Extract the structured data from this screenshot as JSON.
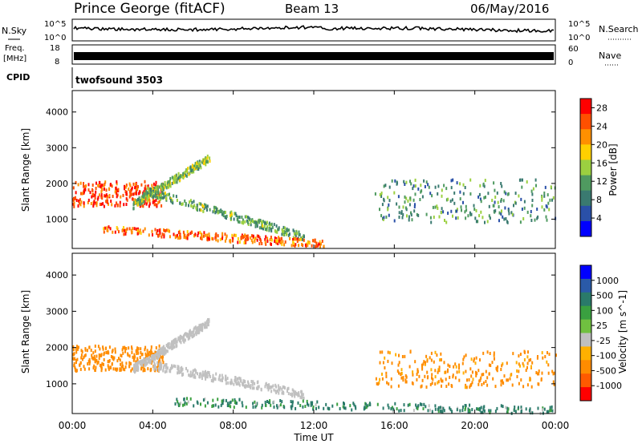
{
  "header": {
    "station": "Prince George (fitACF)",
    "beam": "Beam 13",
    "date": "06/May/2016"
  },
  "panels": {
    "nsky_label": "N.Sky",
    "nsearch_label": "N.Search",
    "noise_scale_top": "10^5",
    "noise_scale_bottom": "10^0",
    "freq_label_line1": "Freq.",
    "freq_label_line2": "[MHz]",
    "freq_ticks": [
      "18",
      "8"
    ],
    "nave_label": "Nave",
    "nave_ticks": [
      "60",
      "0"
    ],
    "cpid_label": "CPID",
    "cpid_value": "twofsound 3503"
  },
  "colors": {
    "missing": "#ffffff",
    "ground_scatter": "#c0c0c0",
    "power_scale": [
      "#0000ff",
      "#2a50a8",
      "#3a7a70",
      "#4f9a60",
      "#9bd040",
      "#ffd000",
      "#ff9000",
      "#ff5000",
      "#ff0000"
    ],
    "velocity_scale": [
      "#ff0000",
      "#ff5a00",
      "#ff8c00",
      "#ffb000",
      "#c0c0c0",
      "#70c040",
      "#3aa040",
      "#2a7a6a",
      "#2a5aa8",
      "#0000ff"
    ]
  },
  "chart_data": [
    {
      "type": "heatmap",
      "name": "power",
      "xlabel": "Time UT",
      "ylabel": "Slant Range [km]",
      "x_ticks": [
        "00:00",
        "04:00",
        "08:00",
        "12:00",
        "16:00",
        "20:00",
        "00:00"
      ],
      "x_range_hours": [
        0,
        24
      ],
      "y_ticks": [
        1000,
        2000,
        3000,
        4000
      ],
      "ylim": [
        180,
        4600
      ],
      "colorbar": {
        "label": "Power [dB]",
        "ticks": [
          4,
          8,
          12,
          16,
          20,
          24,
          28
        ],
        "range": [
          0,
          30
        ]
      },
      "features": [
        {
          "desc": "strong echoes",
          "t_start": 0.0,
          "t_end": 4.5,
          "range_center_km": 1700,
          "range_width_km": 700,
          "value_db": 26
        },
        {
          "desc": "rising band",
          "t_start": 3.0,
          "t_end": 6.8,
          "range_start_km": 1400,
          "range_end_km": 2700,
          "value_db": 14
        },
        {
          "desc": "descending band",
          "t_start": 3.5,
          "t_end": 11.5,
          "range_start_km": 1800,
          "range_end_km": 500,
          "value_db": 12
        },
        {
          "desc": "near-range band",
          "t_start": 1.5,
          "t_end": 12.5,
          "range_start_km": 700,
          "range_end_km": 300,
          "value_db": 24
        },
        {
          "desc": "evening echoes",
          "t_start": 15.0,
          "t_end": 24.0,
          "range_center_km": 1500,
          "range_width_km": 1200,
          "value_db": 10
        }
      ]
    },
    {
      "type": "heatmap",
      "name": "velocity",
      "xlabel": "Time UT",
      "ylabel": "Slant Range [km]",
      "x_ticks": [
        "00:00",
        "04:00",
        "08:00",
        "12:00",
        "16:00",
        "20:00",
        "00:00"
      ],
      "x_range_hours": [
        0,
        24
      ],
      "y_ticks": [
        1000,
        2000,
        3000,
        4000
      ],
      "ylim": [
        180,
        4600
      ],
      "colorbar": {
        "label": "Velocity [m s^-1]",
        "ticks": [
          1000,
          500,
          100,
          25,
          -25,
          -100,
          -500,
          -1000
        ]
      },
      "features": [
        {
          "desc": "receding flow",
          "t_start": 0.0,
          "t_end": 4.5,
          "range_center_km": 1700,
          "range_width_km": 700,
          "value_ms": -300
        },
        {
          "desc": "ground scatter",
          "t_start": 3.0,
          "t_end": 6.8,
          "range_start_km": 1400,
          "range_end_km": 2700,
          "value_ms": 0
        },
        {
          "desc": "ground scatter",
          "t_start": 4.0,
          "t_end": 11.5,
          "range_start_km": 1500,
          "range_end_km": 700,
          "value_ms": 0
        },
        {
          "desc": "approaching flow",
          "t_start": 5.0,
          "t_end": 24.0,
          "range_start_km": 500,
          "range_end_km": 250,
          "value_ms": 150
        },
        {
          "desc": "evening flow",
          "t_start": 15.0,
          "t_end": 24.0,
          "range_center_km": 1400,
          "range_width_km": 1000,
          "value_ms": -200
        }
      ]
    }
  ]
}
